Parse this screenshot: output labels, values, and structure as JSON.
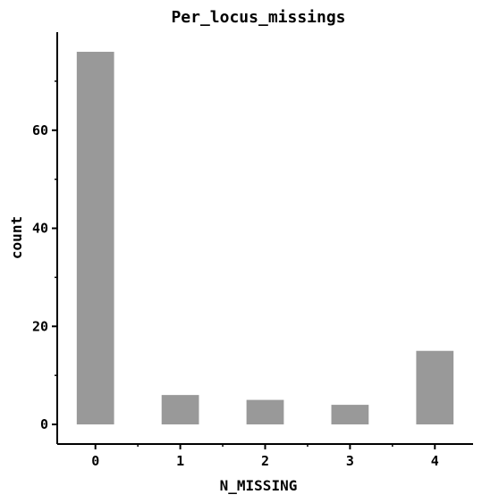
{
  "chart_data": {
    "type": "bar",
    "title": "Per_locus_missings",
    "xlabel": "N_MISSING",
    "ylabel": "count",
    "bars": [
      {
        "x": 0,
        "value": 76
      },
      {
        "x": 1,
        "value": 6
      },
      {
        "x": 2,
        "value": 5
      },
      {
        "x": 3,
        "value": 4
      },
      {
        "x": 4,
        "value": 15
      }
    ],
    "xticks": [
      0,
      1,
      2,
      3,
      4
    ],
    "xlim": [
      -0.45,
      4.45
    ],
    "yticks": [
      0,
      20,
      40,
      60
    ],
    "ylim": [
      -4,
      80
    ],
    "bar_color": "#999999",
    "grid": false,
    "legend": "none"
  }
}
